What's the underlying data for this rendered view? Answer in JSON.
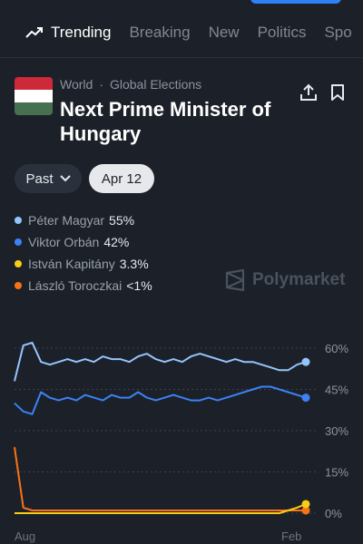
{
  "nav": {
    "tabs": [
      {
        "label": "Trending",
        "active": true,
        "icon": "trending-up-icon"
      },
      {
        "label": "Breaking",
        "active": false
      },
      {
        "label": "New",
        "active": false
      },
      {
        "label": "Politics",
        "active": false
      },
      {
        "label": "Spo",
        "active": false
      }
    ]
  },
  "market": {
    "category": "World",
    "subcategory": "Global Elections",
    "title": "Next Prime Minister of Hungary",
    "flag_colors": [
      "#ce2939",
      "#ffffff",
      "#477050"
    ]
  },
  "filters": {
    "past_label": "Past",
    "date_label": "Apr 12"
  },
  "outcomes": [
    {
      "name": "Péter Magyar",
      "value": "55%",
      "color": "#93c5fd"
    },
    {
      "name": "Viktor Orbán",
      "value": "42%",
      "color": "#3b82f6"
    },
    {
      "name": "István Kapitány",
      "value": "3.3%",
      "color": "#facc15"
    },
    {
      "name": "László Toroczkai",
      "value": "<1%",
      "color": "#f97316"
    }
  ],
  "brand": {
    "name": "Polymarket"
  },
  "chart_data": {
    "type": "line",
    "x_ticks": [
      "Aug",
      "Feb"
    ],
    "y_ticks": [
      "60%",
      "45%",
      "30%",
      "15%",
      "0%"
    ],
    "ylim": [
      0,
      60
    ],
    "grid": true,
    "series": [
      {
        "name": "Péter Magyar",
        "color": "#93c5fd",
        "values": [
          48,
          61,
          62,
          55,
          54,
          55,
          56,
          55,
          56,
          55,
          57,
          56,
          56,
          55,
          57,
          58,
          56,
          55,
          56,
          55,
          57,
          58,
          57,
          56,
          55,
          56,
          55,
          55,
          54,
          53,
          52,
          52,
          54,
          55
        ]
      },
      {
        "name": "Viktor Orbán",
        "color": "#3b82f6",
        "values": [
          40,
          37,
          36,
          44,
          42,
          41,
          42,
          41,
          43,
          42,
          41,
          43,
          42,
          42,
          44,
          42,
          41,
          42,
          43,
          42,
          41,
          41,
          42,
          41,
          42,
          43,
          44,
          45,
          46,
          46,
          45,
          44,
          43,
          42
        ]
      },
      {
        "name": "István Kapitány",
        "color": "#facc15",
        "values": [
          0,
          0,
          0,
          0,
          0,
          0,
          0,
          0,
          0,
          0,
          0,
          0,
          0,
          0,
          0,
          0,
          0,
          0,
          0,
          0,
          0,
          0,
          0,
          0,
          0,
          0,
          0,
          0,
          0,
          0,
          0,
          1,
          2,
          3.3
        ]
      },
      {
        "name": "László Toroczkai",
        "color": "#f97316",
        "values": [
          24,
          2,
          1,
          1,
          1,
          1,
          1,
          1,
          1,
          1,
          1,
          1,
          1,
          1,
          1,
          1,
          1,
          1,
          1,
          1,
          1,
          1,
          1,
          1,
          1,
          1,
          1,
          1,
          1,
          1,
          1,
          1,
          1,
          1
        ]
      }
    ]
  }
}
